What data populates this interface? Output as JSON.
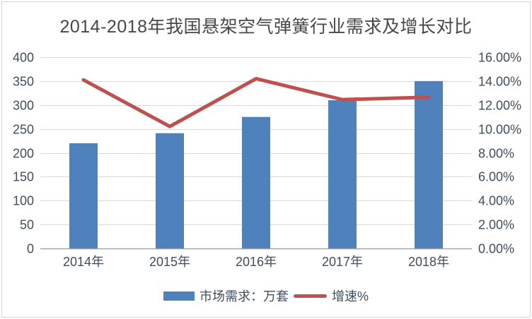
{
  "frame": {
    "background": "#ffffff",
    "border_color": "#d6d6d6"
  },
  "chart_data": {
    "type": "bar+line combo",
    "title": "2014-2018年我国悬架空气弹簧行业需求及增长对比",
    "categories": [
      "2014年",
      "2015年",
      "2016年",
      "2017年",
      "2018年"
    ],
    "series": [
      {
        "name": "市场需求：万套",
        "type": "bar",
        "axis": "left",
        "color": "#4F81BD",
        "values": [
          220,
          241,
          275,
          310,
          350
        ]
      },
      {
        "name": "增速%",
        "type": "line",
        "axis": "right",
        "color": "#C0504D",
        "unit": "%",
        "values": [
          14.1,
          10.2,
          14.2,
          12.45,
          12.65
        ]
      }
    ],
    "left_axis": {
      "min": 0,
      "max": 400,
      "step": 50,
      "tick_labels": [
        "0",
        "50",
        "100",
        "150",
        "200",
        "250",
        "300",
        "350",
        "400"
      ]
    },
    "right_axis": {
      "min": 0,
      "max": 16,
      "step": 2,
      "unit": "%",
      "tick_labels": [
        "0.00%",
        "2.00%",
        "4.00%",
        "6.00%",
        "8.00%",
        "10.00%",
        "12.00%",
        "14.00%",
        "16.00%"
      ]
    },
    "grid": true,
    "legend_position": "bottom",
    "colors": {
      "grid": "#d9d9d9",
      "axis_line": "#a6a6a6",
      "tick_text": "#3f4e5c",
      "title_text": "#474747"
    }
  }
}
